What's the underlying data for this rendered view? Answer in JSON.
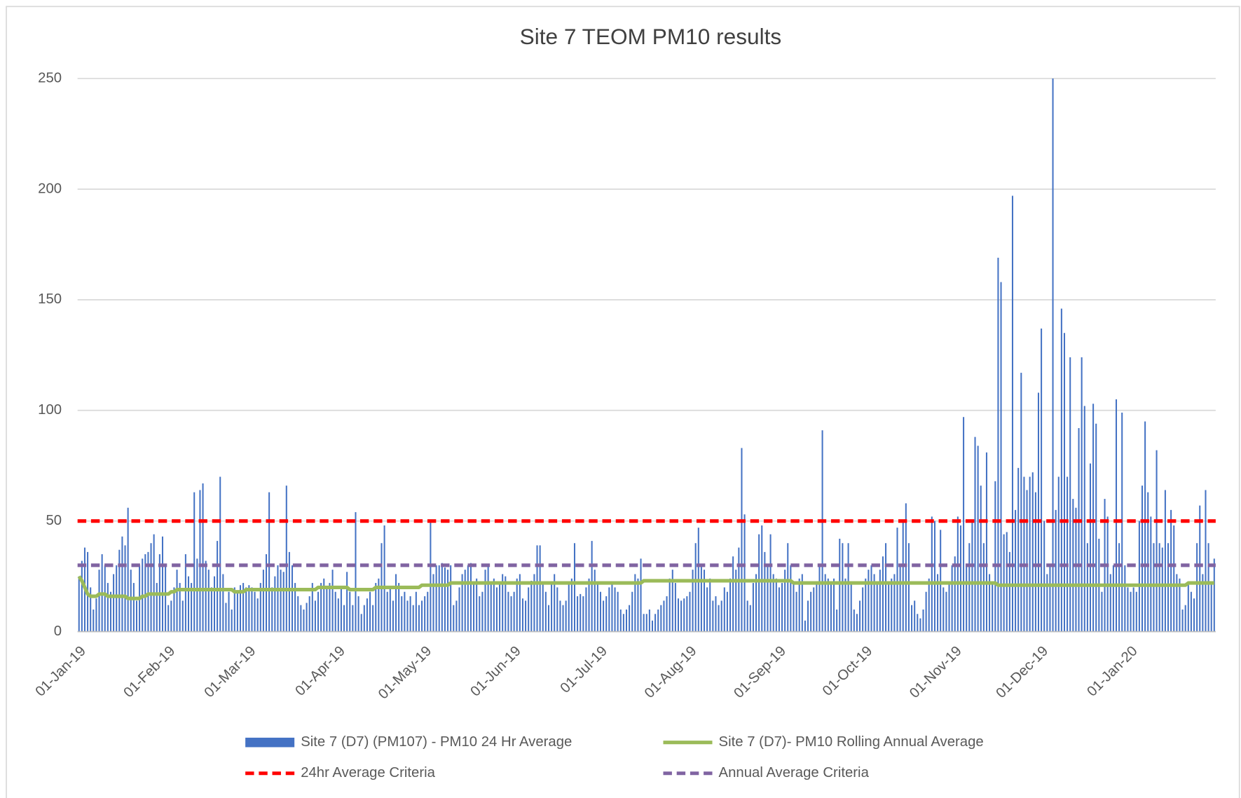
{
  "chart_data": {
    "type": "bar",
    "title": "Site 7 TEOM PM10 results",
    "categories": [
      "01-Jan-19",
      null,
      null,
      null,
      null,
      null,
      null,
      null,
      null,
      null,
      null,
      null,
      null,
      null,
      null,
      null,
      null,
      null,
      null,
      null,
      null,
      null,
      null,
      null,
      null,
      null,
      null,
      null,
      null,
      null,
      null,
      "01-Feb-19",
      null,
      null,
      null,
      null,
      null,
      null,
      null,
      null,
      null,
      null,
      null,
      null,
      null,
      null,
      null,
      null,
      null,
      null,
      null,
      null,
      null,
      null,
      null,
      null,
      null,
      null,
      null,
      "01-Mar-19",
      null,
      null,
      null,
      null,
      null,
      null,
      null,
      null,
      null,
      null,
      null,
      null,
      null,
      null,
      null,
      null,
      null,
      null,
      null,
      null,
      null,
      null,
      null,
      null,
      null,
      null,
      null,
      null,
      null,
      null,
      "01-Apr-19",
      null,
      null,
      null,
      null,
      null,
      null,
      null,
      null,
      null,
      null,
      null,
      null,
      null,
      null,
      null,
      null,
      null,
      null,
      null,
      null,
      null,
      null,
      null,
      null,
      null,
      null,
      null,
      null,
      null,
      "01-May-19",
      null,
      null,
      null,
      null,
      null,
      null,
      null,
      null,
      null,
      null,
      null,
      null,
      null,
      null,
      null,
      null,
      null,
      null,
      null,
      null,
      null,
      null,
      null,
      null,
      null,
      null,
      null,
      null,
      null,
      null,
      "01-Jun-19",
      null,
      null,
      null,
      null,
      null,
      null,
      null,
      null,
      null,
      null,
      null,
      null,
      null,
      null,
      null,
      null,
      null,
      null,
      null,
      null,
      null,
      null,
      null,
      null,
      null,
      null,
      null,
      null,
      null,
      "01-Jul-19",
      null,
      null,
      null,
      null,
      null,
      null,
      null,
      null,
      null,
      null,
      null,
      null,
      null,
      null,
      null,
      null,
      null,
      null,
      null,
      null,
      null,
      null,
      null,
      null,
      null,
      null,
      null,
      null,
      null,
      null,
      "01-Aug-19",
      null,
      null,
      null,
      null,
      null,
      null,
      null,
      null,
      null,
      null,
      null,
      null,
      null,
      null,
      null,
      null,
      null,
      null,
      null,
      null,
      null,
      null,
      null,
      null,
      null,
      null,
      null,
      null,
      null,
      null,
      "01-Sep-19",
      null,
      null,
      null,
      null,
      null,
      null,
      null,
      null,
      null,
      null,
      null,
      null,
      null,
      null,
      null,
      null,
      null,
      null,
      null,
      null,
      null,
      null,
      null,
      null,
      null,
      null,
      null,
      null,
      null,
      "01-Oct-19",
      null,
      null,
      null,
      null,
      null,
      null,
      null,
      null,
      null,
      null,
      null,
      null,
      null,
      null,
      null,
      null,
      null,
      null,
      null,
      null,
      null,
      null,
      null,
      null,
      null,
      null,
      null,
      null,
      null,
      null,
      "01-Nov-19",
      null,
      null,
      null,
      null,
      null,
      null,
      null,
      null,
      null,
      null,
      null,
      null,
      null,
      null,
      null,
      null,
      null,
      null,
      null,
      null,
      null,
      null,
      null,
      null,
      null,
      null,
      null,
      null,
      null,
      "01-Dec-19",
      null,
      null,
      null,
      null,
      null,
      null,
      null,
      null,
      null,
      null,
      null,
      null,
      null,
      null,
      null,
      null,
      null,
      null,
      null,
      null,
      null,
      null,
      null,
      null,
      null,
      null,
      null,
      null,
      null,
      null,
      "01-Jan-20",
      null,
      null,
      null,
      null,
      null,
      null,
      null,
      null,
      null,
      null,
      null,
      null,
      null,
      null,
      null,
      null,
      null,
      null,
      null,
      null,
      null,
      null,
      null,
      null,
      null,
      null,
      null,
      null,
      null
    ],
    "series": [
      {
        "name": "Site 7 (D7) (PM107) - PM10 24 Hr Average",
        "color": "#4472c4",
        "type": "bar",
        "values": [
          25,
          32,
          38,
          36,
          20,
          10,
          15,
          28,
          35,
          30,
          22,
          18,
          26,
          30,
          37,
          43,
          39,
          56,
          28,
          22,
          14,
          30,
          33,
          35,
          36,
          40,
          44,
          22,
          35,
          43,
          30,
          12,
          14,
          20,
          28,
          22,
          14,
          35,
          25,
          22,
          63,
          33,
          64,
          67,
          32,
          28,
          20,
          25,
          41,
          70,
          26,
          13,
          18,
          10,
          20,
          18,
          21,
          22,
          20,
          21,
          20,
          18,
          15,
          22,
          28,
          35,
          63,
          20,
          25,
          30,
          28,
          27,
          66,
          36,
          30,
          22,
          16,
          12,
          10,
          13,
          16,
          22,
          14,
          18,
          22,
          24,
          20,
          22,
          28,
          18,
          15,
          20,
          12,
          27,
          18,
          12,
          54,
          16,
          8,
          12,
          15,
          18,
          12,
          22,
          24,
          40,
          48,
          18,
          20,
          14,
          26,
          22,
          16,
          18,
          14,
          16,
          12,
          18,
          12,
          14,
          16,
          18,
          50,
          26,
          30,
          30,
          31,
          29,
          28,
          30,
          12,
          14,
          20,
          26,
          28,
          30,
          31,
          22,
          24,
          16,
          18,
          28,
          30,
          22,
          24,
          20,
          22,
          26,
          25,
          18,
          16,
          18,
          24,
          26,
          15,
          14,
          20,
          23,
          26,
          39,
          39,
          22,
          18,
          12,
          22,
          26,
          20,
          14,
          12,
          14,
          22,
          24,
          40,
          16,
          17,
          16,
          20,
          24,
          41,
          28,
          22,
          18,
          14,
          16,
          20,
          22,
          20,
          18,
          10,
          8,
          10,
          12,
          18,
          26,
          24,
          33,
          8,
          8,
          10,
          5,
          8,
          10,
          12,
          14,
          16,
          24,
          28,
          22,
          15,
          14,
          15,
          16,
          18,
          28,
          40,
          47,
          30,
          28,
          20,
          24,
          14,
          16,
          12,
          14,
          20,
          18,
          24,
          34,
          28,
          38,
          83,
          53,
          14,
          12,
          22,
          26,
          44,
          48,
          36,
          30,
          44,
          26,
          24,
          20,
          22,
          28,
          40,
          30,
          22,
          18,
          24,
          26,
          5,
          14,
          18,
          20,
          22,
          30,
          91,
          26,
          24,
          22,
          24,
          10,
          42,
          40,
          24,
          40,
          22,
          10,
          8,
          14,
          20,
          24,
          28,
          30,
          26,
          22,
          28,
          34,
          40,
          22,
          24,
          26,
          47,
          30,
          50,
          58,
          40,
          12,
          14,
          8,
          6,
          10,
          18,
          24,
          52,
          50,
          26,
          46,
          20,
          18,
          22,
          30,
          34,
          52,
          48,
          97,
          30,
          40,
          50,
          88,
          84,
          66,
          40,
          81,
          26,
          22,
          68,
          169,
          158,
          44,
          45,
          36,
          197,
          55,
          74,
          117,
          70,
          64,
          70,
          72,
          63,
          108,
          137,
          50,
          26,
          30,
          250,
          55,
          70,
          146,
          135,
          70,
          124,
          60,
          56,
          92,
          124,
          102,
          40,
          76,
          103,
          94,
          42,
          18,
          60,
          52,
          26,
          30,
          105,
          40,
          99,
          30,
          20,
          18,
          20,
          18,
          50,
          66,
          95,
          63,
          52,
          40,
          82,
          40,
          38,
          64,
          40,
          55,
          48,
          26,
          24,
          10,
          12,
          22,
          18,
          15,
          40,
          57,
          26,
          64,
          40,
          22,
          33
        ]
      },
      {
        "name": "Site 7 (D7)- PM10 Rolling Annual Average",
        "color": "#9bbb59",
        "type": "line",
        "values": [
          25,
          23,
          20,
          17,
          16,
          16,
          16,
          17,
          17,
          17,
          16,
          16,
          16,
          16,
          16,
          16,
          16,
          15,
          15,
          15,
          15,
          15,
          16,
          16,
          17,
          17,
          17,
          17,
          17,
          17,
          17,
          17,
          18,
          18,
          19,
          19,
          19,
          19,
          19,
          19,
          19,
          19,
          19,
          19,
          19,
          19,
          19,
          19,
          19,
          19,
          19,
          19,
          19,
          19,
          18,
          18,
          18,
          18,
          19,
          19,
          19,
          19,
          19,
          19,
          19,
          19,
          19,
          19,
          19,
          19,
          19,
          19,
          19,
          19,
          19,
          19,
          19,
          19,
          19,
          19,
          19,
          19,
          19,
          20,
          20,
          20,
          20,
          20,
          20,
          20,
          20,
          20,
          20,
          20,
          19,
          19,
          19,
          19,
          19,
          19,
          19,
          19,
          19,
          20,
          20,
          20,
          20,
          20,
          20,
          20,
          20,
          20,
          20,
          20,
          20,
          20,
          20,
          20,
          20,
          21,
          21,
          21,
          21,
          21,
          21,
          21,
          21,
          21,
          21,
          22,
          22,
          22,
          22,
          22,
          22,
          22,
          22,
          22,
          22,
          22,
          22,
          22,
          22,
          22,
          22,
          22,
          22,
          22,
          22,
          22,
          22,
          22,
          22,
          22,
          22,
          22,
          22,
          22,
          22,
          22,
          22,
          22,
          22,
          22,
          22,
          22,
          22,
          22,
          22,
          22,
          22,
          22,
          22,
          22,
          22,
          22,
          22,
          22,
          22,
          22,
          22,
          22,
          22,
          22,
          22,
          22,
          22,
          22,
          22,
          22,
          22,
          22,
          22,
          22,
          22,
          22,
          23,
          23,
          23,
          23,
          23,
          23,
          23,
          23,
          23,
          23,
          23,
          23,
          23,
          23,
          23,
          23,
          23,
          23,
          23,
          23,
          23,
          23,
          23,
          23,
          23,
          23,
          23,
          23,
          23,
          23,
          23,
          23,
          23,
          23,
          23,
          23,
          23,
          23,
          23,
          23,
          23,
          23,
          23,
          23,
          23,
          23,
          23,
          23,
          23,
          23,
          23,
          23,
          22,
          22,
          22,
          22,
          22,
          22,
          22,
          22,
          22,
          22,
          22,
          22,
          22,
          22,
          22,
          22,
          22,
          22,
          22,
          22,
          22,
          22,
          22,
          22,
          22,
          22,
          22,
          22,
          22,
          22,
          22,
          22,
          22,
          22,
          22,
          22,
          22,
          22,
          22,
          22,
          22,
          22,
          22,
          22,
          22,
          22,
          22,
          22,
          22,
          22,
          22,
          22,
          22,
          22,
          22,
          22,
          22,
          22,
          22,
          22,
          22,
          22,
          22,
          22,
          22,
          22,
          22,
          22,
          22,
          22,
          22,
          21,
          21,
          21,
          21,
          21,
          21,
          21,
          21,
          21,
          21,
          21,
          21,
          21,
          21,
          21,
          21,
          21,
          21,
          21,
          21,
          21,
          21,
          21,
          21,
          21,
          21,
          21,
          21,
          21,
          21,
          21,
          21,
          21,
          21,
          21,
          21,
          21,
          21,
          21,
          21,
          21,
          21,
          21,
          21,
          21,
          21,
          21,
          21,
          21,
          21,
          21,
          21,
          21,
          21,
          21,
          21,
          21,
          21,
          21,
          21,
          21,
          21,
          21,
          21,
          21,
          21,
          22,
          22,
          22,
          22,
          22,
          22,
          22,
          22,
          22,
          22
        ]
      },
      {
        "name": "24hr Average Criteria",
        "color": "#ff0000",
        "type": "dashed",
        "value": 50
      },
      {
        "name": "Annual Average Criteria",
        "color": "#8064a2",
        "type": "dashed",
        "value": 30
      }
    ],
    "ylim": [
      0,
      250
    ],
    "yticks": [
      0,
      50,
      100,
      150,
      200,
      250
    ],
    "grid": true
  }
}
